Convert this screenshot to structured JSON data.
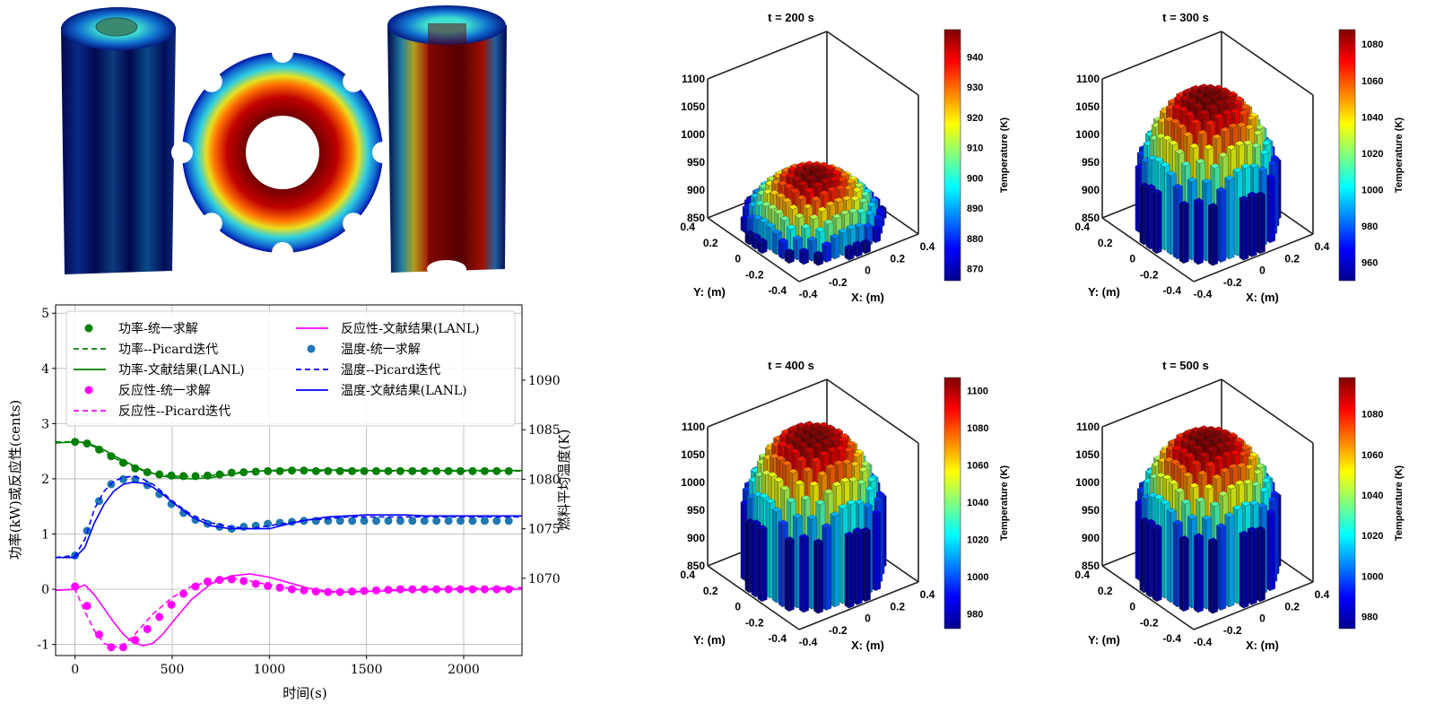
{
  "colors": {
    "power": "#008000",
    "reactivity": "#ff00ff",
    "temperature_line": "#0000ff",
    "temperature_marker": "#1f77b4"
  },
  "chart_data": [
    {
      "type": "line",
      "xlabel": "时间(s)",
      "ylabel": "功率(kW)或反应性(cents)",
      "y2label": "燃料平均温度(K)",
      "xlim": [
        -100,
        2300
      ],
      "ylim": [
        -1.2,
        5.15
      ],
      "y2lim": [
        1062.2,
        1097.6
      ],
      "xticks": [
        "0",
        "500",
        "1000",
        "1500",
        "2000"
      ],
      "yticks": [
        "-1",
        "0",
        "1",
        "2",
        "3",
        "4",
        "5"
      ],
      "y2ticks": [
        "1070",
        "1075",
        "1080",
        "1085",
        "1090"
      ],
      "grid": true,
      "legend_position": "top",
      "marker_x": [
        0,
        62,
        124,
        186,
        248,
        310,
        372,
        434,
        496,
        558,
        620,
        682,
        744,
        806,
        868,
        930,
        992,
        1054,
        1116,
        1178,
        1240,
        1302,
        1364,
        1426,
        1488,
        1550,
        1612,
        1674,
        1736,
        1798,
        1860,
        1922,
        1984,
        2046,
        2108,
        2170,
        2232
      ],
      "line_x": [
        -100,
        0,
        50,
        100,
        150,
        200,
        250,
        300,
        350,
        400,
        450,
        500,
        600,
        700,
        800,
        900,
        1000,
        1100,
        1200,
        1300,
        1400,
        1500,
        1600,
        1700,
        1800,
        2000,
        2300
      ],
      "series": [
        {
          "name": "功率-统一求解",
          "axis": "left",
          "style": "marker",
          "color": "#008000",
          "values": [
            2.67,
            2.64,
            2.53,
            2.41,
            2.29,
            2.19,
            2.12,
            2.08,
            2.06,
            2.05,
            2.05,
            2.06,
            2.08,
            2.11,
            2.12,
            2.13,
            2.14,
            2.14,
            2.15,
            2.15,
            2.14,
            2.14,
            2.14,
            2.14,
            2.14,
            2.14,
            2.14,
            2.14,
            2.14,
            2.14,
            2.14,
            2.14,
            2.14,
            2.14,
            2.14,
            2.14,
            2.14
          ]
        },
        {
          "name": "功率--Picard迭代",
          "axis": "left",
          "style": "dashed",
          "color": "#008000",
          "values": [
            2.67,
            2.67,
            2.64,
            2.58,
            2.48,
            2.38,
            2.3,
            2.22,
            2.15,
            2.1,
            2.07,
            2.05,
            2.04,
            2.06,
            2.1,
            2.13,
            2.14,
            2.15,
            2.15,
            2.14,
            2.14,
            2.14,
            2.14,
            2.14,
            2.14,
            2.14,
            2.14
          ]
        },
        {
          "name": "功率-文献结果(LANL)",
          "axis": "left",
          "style": "solid",
          "color": "#008000",
          "values": [
            2.65,
            2.67,
            2.66,
            2.6,
            2.52,
            2.42,
            2.33,
            2.24,
            2.16,
            2.1,
            2.05,
            2.02,
            2.0,
            2.02,
            2.08,
            2.13,
            2.15,
            2.16,
            2.16,
            2.16,
            2.16,
            2.15,
            2.15,
            2.15,
            2.15,
            2.15,
            2.15
          ]
        },
        {
          "name": "反应性-统一求解",
          "axis": "left",
          "style": "marker",
          "color": "#ff00ff",
          "values": [
            0.05,
            -0.3,
            -0.82,
            -1.05,
            -1.05,
            -0.92,
            -0.72,
            -0.5,
            -0.28,
            -0.08,
            0.05,
            0.14,
            0.17,
            0.18,
            0.15,
            0.1,
            0.06,
            0.03,
            0.0,
            -0.02,
            -0.04,
            -0.05,
            -0.05,
            -0.04,
            -0.03,
            -0.02,
            -0.01,
            0.0,
            0.0,
            0.0,
            0.0,
            0.0,
            0.0,
            0.0,
            0.0,
            0.0,
            0.0
          ]
        },
        {
          "name": "反应性--Picard迭代",
          "axis": "left",
          "style": "dashed",
          "color": "#ff00ff",
          "values": [
            -0.02,
            0.0,
            -0.4,
            -0.75,
            -0.98,
            -1.05,
            -1.0,
            -0.85,
            -0.65,
            -0.45,
            -0.3,
            -0.15,
            0.05,
            0.15,
            0.2,
            0.15,
            0.08,
            0.02,
            -0.03,
            -0.05,
            -0.05,
            -0.04,
            -0.02,
            0.0,
            0.0,
            0.02,
            0.03
          ]
        },
        {
          "name": "反应性-文献结果(LANL)",
          "axis": "left",
          "style": "solid",
          "color": "#ff00ff",
          "values": [
            -0.02,
            0.0,
            0.08,
            -0.1,
            -0.35,
            -0.6,
            -0.82,
            -0.97,
            -1.02,
            -0.98,
            -0.82,
            -0.6,
            -0.18,
            0.1,
            0.24,
            0.28,
            0.22,
            0.12,
            0.02,
            -0.04,
            -0.05,
            -0.04,
            -0.03,
            -0.02,
            -0.01,
            0.0,
            0.0
          ]
        },
        {
          "name": "温度-统一求解",
          "axis": "right",
          "style": "marker",
          "color": "#1f77b4",
          "values": [
            1072.3,
            1074.8,
            1077.8,
            1079.5,
            1080.0,
            1080.0,
            1079.4,
            1078.5,
            1077.5,
            1076.6,
            1075.9,
            1075.5,
            1075.2,
            1075.0,
            1075.2,
            1075.3,
            1075.5,
            1075.6,
            1075.7,
            1075.8,
            1075.8,
            1075.8,
            1075.8,
            1075.8,
            1075.8,
            1075.8,
            1075.8,
            1075.8,
            1075.8,
            1075.8,
            1075.8,
            1075.8,
            1075.8,
            1075.8,
            1075.8,
            1075.8,
            1075.8
          ]
        },
        {
          "name": "温度--Picard迭代",
          "axis": "right",
          "style": "dashed",
          "color": "#0000ff",
          "values": [
            1072.1,
            1072.3,
            1073.9,
            1077.0,
            1078.8,
            1079.8,
            1080.2,
            1080.3,
            1080.0,
            1079.5,
            1078.7,
            1077.8,
            1076.4,
            1075.6,
            1075.2,
            1075.0,
            1075.3,
            1075.6,
            1075.9,
            1076.0,
            1076.2,
            1076.2,
            1076.2,
            1076.2,
            1076.2,
            1076.2,
            1076.2
          ]
        },
        {
          "name": "温度-文献结果(LANL)",
          "axis": "right",
          "style": "solid",
          "color": "#0000ff",
          "values": [
            1072.1,
            1072.1,
            1073.1,
            1075.6,
            1077.5,
            1078.8,
            1079.5,
            1079.7,
            1079.6,
            1079.2,
            1078.5,
            1077.7,
            1076.2,
            1075.3,
            1075.0,
            1075.0,
            1075.0,
            1075.5,
            1075.9,
            1076.2,
            1076.3,
            1076.4,
            1076.4,
            1076.4,
            1076.3,
            1076.3,
            1076.3
          ]
        }
      ]
    },
    {
      "type": "bar3d",
      "panels": [
        {
          "title": "t = 200 s",
          "zlim": [
            850,
            1100
          ],
          "zticks": [
            "850",
            "900",
            "950",
            "1000",
            "1050",
            "1100"
          ],
          "xticks": [
            "-0.4",
            "-0.2",
            "0",
            "0.2",
            "0.4"
          ],
          "yticks": [
            "-0.4",
            "-0.2",
            "0",
            "0.2",
            "0.4"
          ],
          "xlabel": "X: (m)",
          "ylabel": "Y: (m)",
          "colorbar_label": "Temperature (K)",
          "colorbar_range": [
            866,
            949
          ],
          "colorbar_ticks": [
            "870",
            "880",
            "890",
            "900",
            "910",
            "920",
            "930",
            "940"
          ],
          "t_min": 866,
          "t_max": 949
        },
        {
          "title": "t = 300 s",
          "zlim": [
            850,
            1100
          ],
          "zticks": [
            "850",
            "900",
            "950",
            "1000",
            "1050",
            "1100"
          ],
          "xticks": [
            "-0.4",
            "-0.2",
            "0",
            "0.2",
            "0.4"
          ],
          "yticks": [
            "-0.4",
            "-0.2",
            "0",
            "0.2",
            "0.4"
          ],
          "xlabel": "X: (m)",
          "ylabel": "Y: (m)",
          "colorbar_label": "Temperature (K)",
          "colorbar_range": [
            950,
            1088
          ],
          "colorbar_ticks": [
            "960",
            "980",
            "1000",
            "1020",
            "1040",
            "1060",
            "1080"
          ],
          "t_min": 950,
          "t_max": 1088
        },
        {
          "title": "t = 400 s",
          "zlim": [
            850,
            1100
          ],
          "zticks": [
            "850",
            "900",
            "950",
            "1000",
            "1050",
            "1100"
          ],
          "xticks": [
            "-0.4",
            "-0.2",
            "0",
            "0.2",
            "0.4"
          ],
          "yticks": [
            "-0.4",
            "-0.2",
            "0",
            "0.2",
            "0.4"
          ],
          "xlabel": "X: (m)",
          "ylabel": "Y: (m)",
          "colorbar_label": "Temperature (K)",
          "colorbar_range": [
            972,
            1107
          ],
          "colorbar_ticks": [
            "980",
            "1000",
            "1020",
            "1040",
            "1060",
            "1080",
            "1100"
          ],
          "t_min": 972,
          "t_max": 1107
        },
        {
          "title": "t = 500 s",
          "zlim": [
            850,
            1100
          ],
          "zticks": [
            "850",
            "900",
            "950",
            "1000",
            "1050",
            "1100"
          ],
          "xticks": [
            "-0.4",
            "-0.2",
            "0",
            "0.2",
            "0.4"
          ],
          "yticks": [
            "-0.4",
            "-0.2",
            "0",
            "0.2",
            "0.4"
          ],
          "xlabel": "X: (m)",
          "ylabel": "Y: (m)",
          "colorbar_label": "Temperature (K)",
          "colorbar_range": [
            974,
            1098
          ],
          "colorbar_ticks": [
            "980",
            "1000",
            "1020",
            "1040",
            "1060",
            "1080"
          ],
          "t_min": 974,
          "t_max": 1098
        }
      ]
    }
  ],
  "renders": {
    "items": [
      "fuel-rod-exterior-render",
      "fuel-cross-section-render",
      "fuel-rod-cutaway-render"
    ]
  }
}
